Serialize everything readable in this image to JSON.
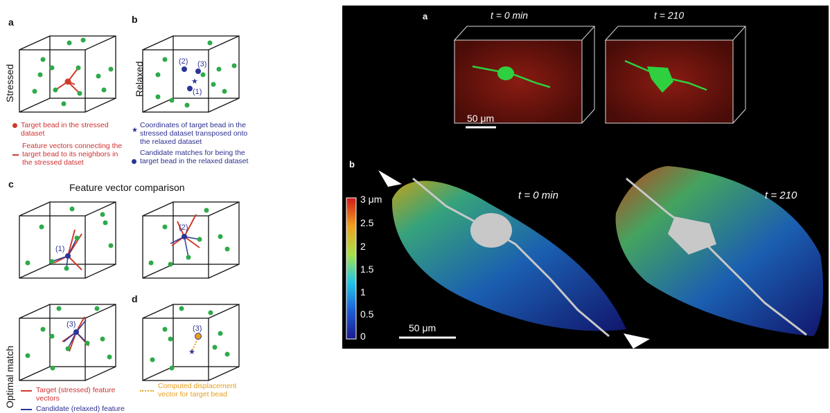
{
  "left": {
    "panel_a": {
      "letter": "a",
      "row_label": "Stressed",
      "legend_bead": "Target bead in the stressed dataset",
      "legend_vectors": "Feature vectors connecting the target bead to its neighbors in the stressed datset"
    },
    "panel_b": {
      "letter": "b",
      "row_label": "Relaxed",
      "candidates": [
        "(1)",
        "(2)",
        "(3)"
      ],
      "legend_star": "Coordinates of target bead in the stressed dataset transposed onto the relaxed dataset",
      "legend_candidates": "Candidate matches for being the target bead in the relaxed dataset"
    },
    "panel_c": {
      "letter": "c",
      "title": "Feature vector comparison",
      "row_label": "Optimal match",
      "cube_labels": [
        "(1)",
        "(2)",
        "(3)"
      ],
      "legend_target": "Target (stressed) feature vectors",
      "legend_candidate": "Candidate (relaxed) feature vectors"
    },
    "panel_d": {
      "letter": "d",
      "cube_label": "(3)",
      "legend_displacement": "Computed displacement vector for target bead"
    }
  },
  "right": {
    "panel_a": {
      "letter": "a",
      "time_0": "t = 0 min",
      "time_1": "t = 210",
      "scale": "50 μm"
    },
    "panel_b": {
      "letter": "b",
      "time_0": "t = 0 min",
      "time_1": "t = 210",
      "scale": "50 μm",
      "colorbar_ticks": [
        "3 μm",
        "2.5",
        "2",
        "1.5",
        "1",
        "0.5",
        "0"
      ]
    }
  },
  "colors": {
    "bead_green": "#2eaa4a",
    "target_red": "#d03a2a",
    "candidate_blue": "#2b3596",
    "displacement_orange": "#e6a020"
  }
}
